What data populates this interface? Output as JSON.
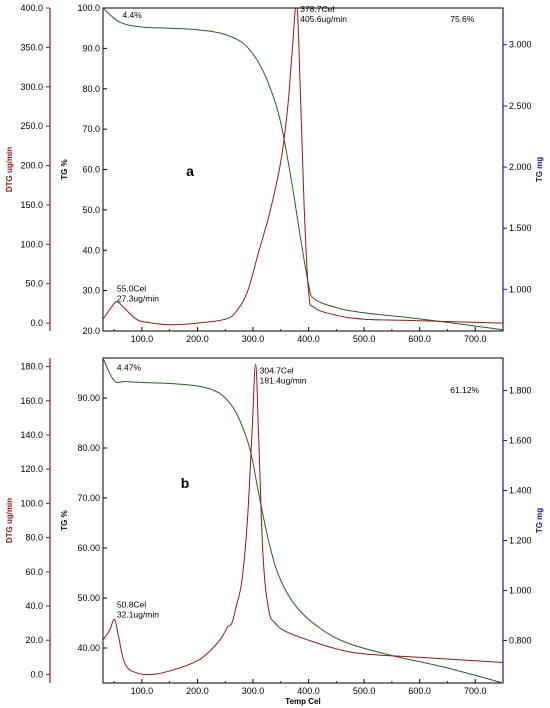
{
  "colors": {
    "dtg": "#8b1a1a",
    "tg_pct": "#000000",
    "tg_mg": "#1a1a8b",
    "tg_curve": "#2e5a2e",
    "dtg_curve": "#8b1a1a"
  },
  "chart_data": [
    {
      "type": "line",
      "panel_label": "a",
      "xlabel": "",
      "xlim": [
        30,
        750
      ],
      "xticks": [
        "100.0",
        "200.0",
        "300.0",
        "400.0",
        "500.0",
        "600.0",
        "700.0"
      ],
      "xtick_values": [
        100,
        200,
        300,
        400,
        500,
        600,
        700
      ],
      "left_axis": {
        "title": "DTG ug/min",
        "lim": [
          -10,
          400
        ],
        "ticks": [
          "0.0",
          "50.0",
          "100.0",
          "150.0",
          "200.0",
          "250.0",
          "300.0",
          "350.0",
          "400.0"
        ],
        "tick_values": [
          0,
          50,
          100,
          150,
          200,
          250,
          300,
          350,
          400
        ]
      },
      "mid_axis": {
        "title": "TG %",
        "lim": [
          20,
          100
        ],
        "ticks": [
          "20.0",
          "30.0",
          "40.0",
          "50.0",
          "60.0",
          "70.0",
          "80.0",
          "90.0",
          "100.0"
        ],
        "tick_values": [
          20,
          30,
          40,
          50,
          60,
          70,
          80,
          90,
          100
        ]
      },
      "right_axis": {
        "title": "TG mg",
        "lim": [
          0.66,
          3.3
        ],
        "ticks": [
          "1.000",
          "1.500",
          "2.000",
          "2.500",
          "3.000"
        ],
        "tick_values": [
          1.0,
          1.5,
          2.0,
          2.5,
          3.0
        ]
      },
      "series": [
        {
          "name": "",
          "axis": "mid",
          "x": [
            30,
            60,
            100,
            150,
            200,
            240,
            270,
            290,
            310,
            330,
            350,
            370,
            385,
            400,
            410,
            450,
            500,
            600,
            750
          ],
          "y": [
            100,
            96.5,
            95.3,
            95.0,
            94.6,
            93.8,
            92.3,
            90.3,
            86.5,
            80.5,
            71.5,
            56.5,
            43.5,
            31.5,
            28.0,
            25.8,
            24.5,
            23.0,
            20.3
          ]
        },
        {
          "name": "",
          "axis": "left",
          "x": [
            30,
            45,
            55,
            70,
            90,
            110,
            150,
            200,
            250,
            270,
            290,
            310,
            330,
            350,
            362,
            370,
            378.7,
            385,
            392,
            400,
            410,
            450,
            500,
            600,
            750
          ],
          "y": [
            5,
            20,
            27.3,
            18,
            5,
            1,
            -2,
            0,
            5,
            15,
            40,
            90,
            140,
            205,
            270,
            340,
            405.6,
            300,
            150,
            40,
            20,
            10,
            5,
            3,
            0
          ]
        }
      ],
      "annotations": [
        {
          "x": 65,
          "y": 97.5,
          "axis": "mid",
          "lines": [
            "4.4%"
          ]
        },
        {
          "x": 655,
          "y": 96.5,
          "axis": "mid",
          "lines": [
            "75.6%"
          ]
        },
        {
          "x": 385,
          "y": 395,
          "axis": "left",
          "lines": [
            "378.7Cel",
            "405.6ug/min"
          ]
        },
        {
          "x": 55,
          "y": 40,
          "axis": "left",
          "lines": [
            "55.0Cel",
            "27.3ug/min"
          ]
        }
      ]
    },
    {
      "type": "line",
      "panel_label": "b",
      "xlabel": "Temp Cel",
      "xlim": [
        30,
        750
      ],
      "xticks": [
        "100.0",
        "200.0",
        "300.0",
        "400.0",
        "500.0",
        "600.0",
        "700.0"
      ],
      "xtick_values": [
        100,
        200,
        300,
        400,
        500,
        600,
        700
      ],
      "left_axis": {
        "title": "DTG ug/min",
        "lim": [
          -5,
          185
        ],
        "ticks": [
          "0.0",
          "20.0",
          "40.0",
          "60.0",
          "80.0",
          "100.0",
          "120.0",
          "140.0",
          "160.0",
          "180.0"
        ],
        "tick_values": [
          0,
          20,
          40,
          60,
          80,
          100,
          120,
          140,
          160,
          180
        ]
      },
      "mid_axis": {
        "title": "TG %",
        "lim": [
          33,
          98
        ],
        "ticks": [
          "40.00",
          "50.00",
          "60.00",
          "70.00",
          "80.00",
          "90.00"
        ],
        "tick_values": [
          40,
          50,
          60,
          70,
          80,
          90
        ]
      },
      "right_axis": {
        "title": "TG mg",
        "lim": [
          0.63,
          1.93
        ],
        "ticks": [
          "0.800",
          "1.000",
          "1.200",
          "1.400",
          "1.600",
          "1.800"
        ],
        "tick_values": [
          0.8,
          1.0,
          1.2,
          1.4,
          1.6,
          1.8
        ]
      },
      "series": [
        {
          "name": "",
          "axis": "mid",
          "x": [
            30,
            50,
            70,
            100,
            150,
            200,
            230,
            250,
            270,
            290,
            300,
            310,
            330,
            350,
            380,
            420,
            470,
            550,
            650,
            750
          ],
          "y": [
            98,
            93.5,
            93.3,
            93.1,
            92.9,
            92.4,
            91.5,
            90.0,
            87.0,
            81.5,
            77.0,
            71.0,
            60.5,
            53.5,
            48.0,
            44.0,
            41.0,
            38.5,
            36.0,
            33.0
          ]
        },
        {
          "name": "",
          "axis": "left",
          "x": [
            30,
            42,
            50.8,
            58,
            70,
            90,
            120,
            160,
            200,
            220,
            240,
            255,
            262,
            270,
            280,
            290,
            298,
            304.7,
            310,
            318,
            328,
            340,
            360,
            400,
            450,
            500,
            600,
            700,
            750
          ],
          "y": [
            20,
            26,
            32.1,
            22,
            6,
            1,
            0,
            3,
            8,
            13,
            20,
            28,
            30,
            40,
            55,
            90,
            140,
            181.4,
            140,
            70,
            38,
            30,
            25,
            20,
            15,
            12,
            10,
            8,
            7
          ]
        }
      ],
      "annotations": [
        {
          "x": 55,
          "y": 95.5,
          "axis": "mid",
          "lines": [
            "4.47%"
          ]
        },
        {
          "x": 655,
          "y": 91.0,
          "axis": "mid",
          "lines": [
            "61.12%"
          ]
        },
        {
          "x": 312,
          "y": 176,
          "axis": "left",
          "lines": [
            "304.7Cel",
            "181.4ug/min"
          ]
        },
        {
          "x": 55,
          "y": 39,
          "axis": "left",
          "lines": [
            "50.8Cel",
            "32.1ug/min"
          ]
        }
      ]
    }
  ]
}
